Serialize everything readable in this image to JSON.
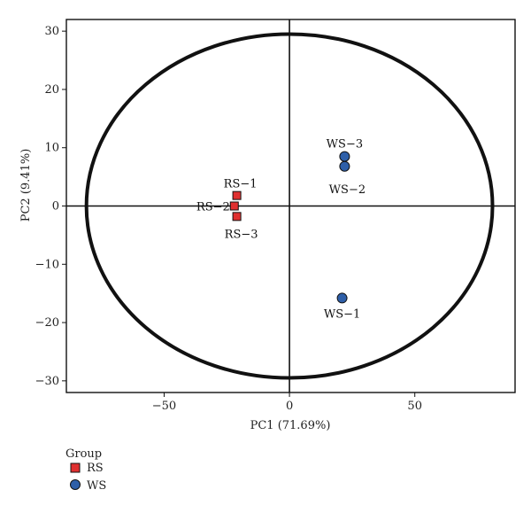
{
  "chart_data": {
    "type": "scatter",
    "xlabel": "PC1 (71.69%)",
    "ylabel": "PC2 (9.41%)",
    "xlim": [
      -89,
      90
    ],
    "ylim": [
      -32,
      32
    ],
    "xticks": [
      -50,
      0,
      50
    ],
    "yticks": [
      -30,
      -20,
      -10,
      0,
      10,
      20,
      30
    ],
    "grid": false,
    "reference_lines": {
      "x": 0,
      "y": 0
    },
    "ellipse": {
      "cx": 0,
      "cy": 0,
      "rx": 81,
      "ry": 29.5
    },
    "legend": {
      "title": "Group",
      "placement": "bottom-left"
    },
    "series": [
      {
        "name": "RS",
        "marker": "square",
        "color": "#e03030",
        "points": [
          {
            "label": "RS−1",
            "x": -21,
            "y": 1.8
          },
          {
            "label": "RS−2",
            "x": -22,
            "y": 0.0
          },
          {
            "label": "RS−3",
            "x": -21,
            "y": -1.8
          }
        ]
      },
      {
        "name": "WS",
        "marker": "circle",
        "color": "#2e5fa8",
        "points": [
          {
            "label": "WS−1",
            "x": 21,
            "y": -15.8
          },
          {
            "label": "WS−2",
            "x": 22,
            "y": 6.8
          },
          {
            "label": "WS−3",
            "x": 22,
            "y": 8.5
          }
        ]
      }
    ]
  }
}
